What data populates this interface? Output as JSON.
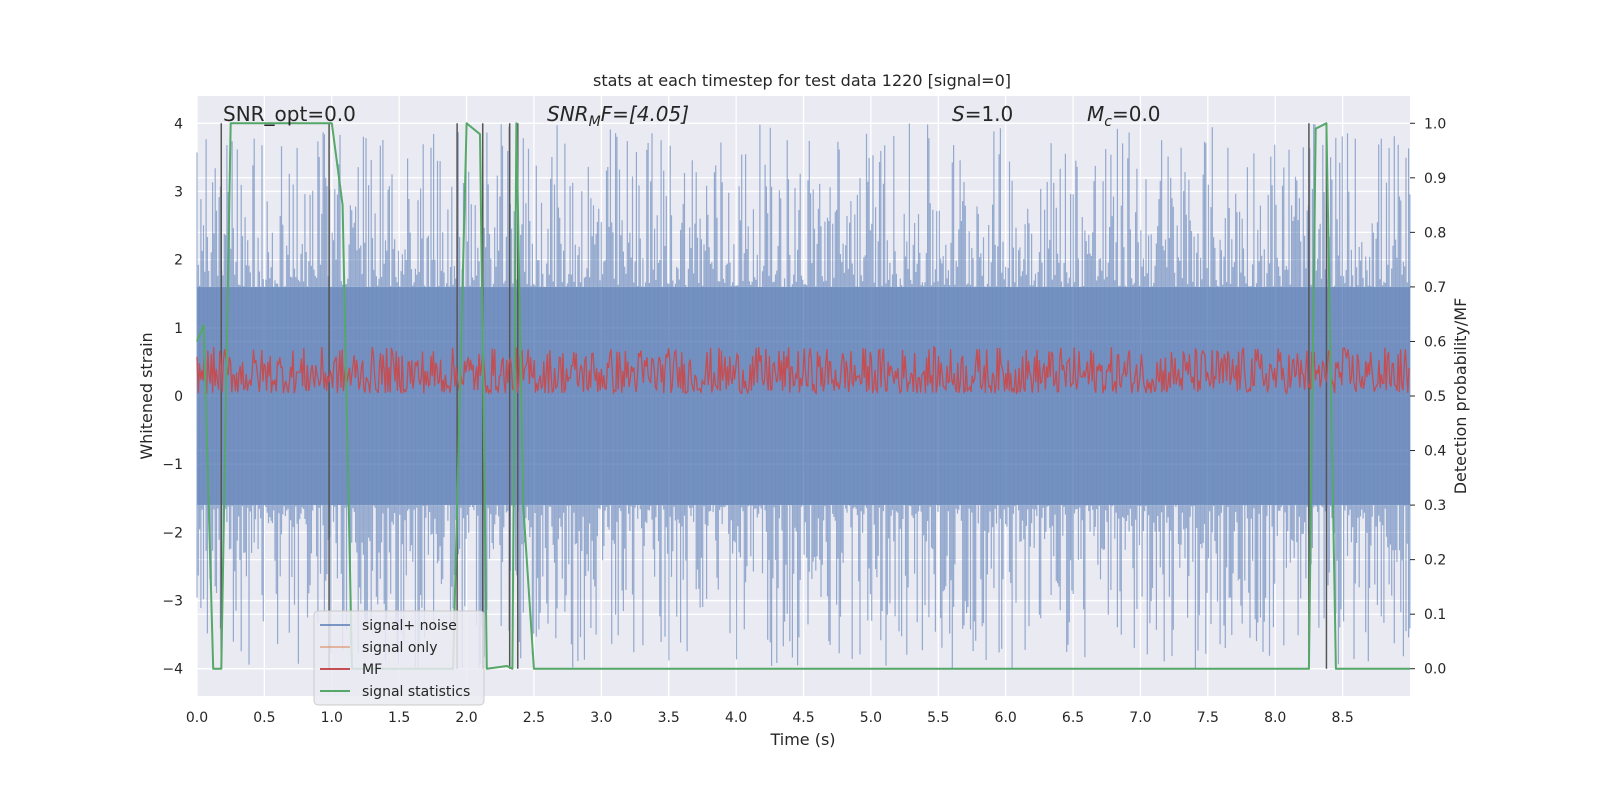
{
  "chart_data": {
    "type": "line",
    "title": "stats at each timestep for test data 1220 [signal=0]",
    "xlabel": "Time (s)",
    "ylabel_left": "Whitened strain",
    "ylabel_right": "Detection probability/MF",
    "xlim": [
      0.0,
      9.0
    ],
    "ylim_left": [
      -4.4,
      4.4
    ],
    "ylim_right": [
      -0.05,
      1.05
    ],
    "grid": true,
    "legend_position": "lower-left",
    "x_ticks": [
      "0.0",
      "0.5",
      "1.0",
      "1.5",
      "2.0",
      "2.5",
      "3.0",
      "3.5",
      "4.0",
      "4.5",
      "5.0",
      "5.5",
      "6.0",
      "6.5",
      "7.0",
      "7.5",
      "8.0",
      "8.5"
    ],
    "y_ticks_left": [
      "4",
      "3",
      "2",
      "1",
      "0",
      "−1",
      "−2",
      "−3",
      "−4"
    ],
    "y_ticks_right": [
      "1.0",
      "0.9",
      "0.8",
      "0.7",
      "0.6",
      "0.5",
      "0.4",
      "0.3",
      "0.2",
      "0.1",
      "0.0"
    ],
    "annotations": {
      "snr_opt": "SNR_opt=0.0",
      "snr_mf_main": "SNR",
      "snr_mf_sub": "M",
      "snr_mf_rest": "F=[4.05]",
      "s_main": "S",
      "s_rest": "=1.0",
      "mc_main": "M",
      "mc_sub": "c",
      "mc_rest": "=0.0"
    },
    "series": [
      {
        "name": "signal+ noise",
        "color": "#4c72b0",
        "axis": "left",
        "amplitude_typical": 1.6,
        "amplitude_peak": 4.0
      },
      {
        "name": "signal only",
        "color": "#dd8452",
        "axis": "left",
        "values": []
      },
      {
        "name": "MF",
        "color": "#c44e52",
        "axis": "right",
        "range": [
          0.5,
          0.6
        ]
      },
      {
        "name": "signal statistics",
        "color": "#55a868",
        "axis": "right",
        "x": [
          0.0,
          0.05,
          0.12,
          0.18,
          0.25,
          1.0,
          1.08,
          1.15,
          1.9,
          2.0,
          2.1,
          2.15,
          2.3,
          2.34,
          2.37,
          2.42,
          2.5,
          8.25,
          8.3,
          8.38,
          8.45,
          9.0
        ],
        "y": [
          0.6,
          0.63,
          0.0,
          0.0,
          1.0,
          1.0,
          0.85,
          0.0,
          0.0,
          1.0,
          0.98,
          0.0,
          0.005,
          0.0,
          1.0,
          0.3,
          0.0,
          0.0,
          0.99,
          1.0,
          0.0,
          0.0
        ]
      }
    ],
    "vertical_markers_x": [
      0.18,
      0.98,
      1.93,
      2.12,
      2.32,
      2.38,
      8.25,
      8.38
    ]
  }
}
